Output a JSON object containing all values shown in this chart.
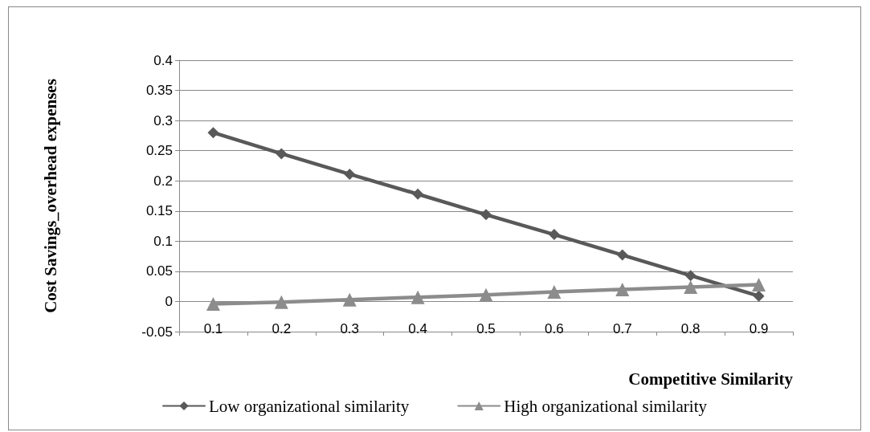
{
  "chart_data": {
    "type": "line",
    "xlabel": "Competitive Similarity",
    "ylabel": "Cost Savings_overhead expenses",
    "categories": [
      "0.1",
      "0.2",
      "0.3",
      "0.4",
      "0.5",
      "0.6",
      "0.7",
      "0.8",
      "0.9"
    ],
    "series": [
      {
        "name": "Low organizational similarity",
        "color": "#595959",
        "marker": "diamond",
        "values": [
          0.28,
          0.245,
          0.211,
          0.178,
          0.144,
          0.111,
          0.077,
          0.043,
          0.009
        ]
      },
      {
        "name": "High organizational similarity",
        "color": "#8c8c8c",
        "marker": "triangle",
        "values": [
          -0.004,
          -0.001,
          0.003,
          0.007,
          0.011,
          0.016,
          0.02,
          0.024,
          0.028
        ]
      }
    ],
    "ylim": [
      -0.05,
      0.4
    ],
    "yticks": [
      -0.05,
      0,
      0.05,
      0.1,
      0.15,
      0.2,
      0.25,
      0.3,
      0.35,
      0.4
    ],
    "grid": "y",
    "legend": "bottom",
    "line_style": "solid"
  }
}
